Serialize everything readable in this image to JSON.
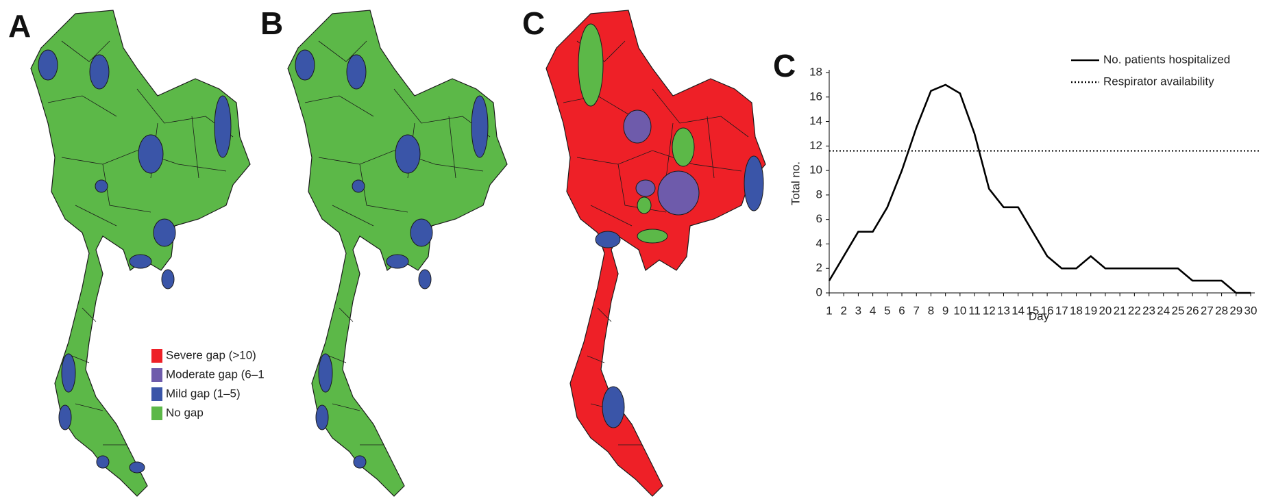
{
  "panels": [
    {
      "label": "A"
    },
    {
      "label": "B"
    },
    {
      "label": "C"
    }
  ],
  "map_legend": [
    {
      "label": "Severe gap (>10)",
      "color": "#ee2027"
    },
    {
      "label": "Moderate gap (6–1",
      "color": "#6e5bab"
    },
    {
      "label": "Mild gap (1–5)",
      "color": "#3a55a8"
    },
    {
      "label": "No gap",
      "color": "#5cb848"
    }
  ],
  "chart_data": {
    "type": "line",
    "label": "C",
    "x": [
      1,
      2,
      3,
      4,
      5,
      6,
      7,
      8,
      9,
      10,
      11,
      12,
      13,
      14,
      15,
      16,
      17,
      18,
      19,
      20,
      21,
      22,
      23,
      24,
      25,
      26,
      27,
      28,
      29,
      30
    ],
    "xlim": [
      1,
      30
    ],
    "xticks": [
      1,
      2,
      3,
      4,
      5,
      6,
      7,
      8,
      9,
      10,
      11,
      12,
      13,
      14,
      15,
      16,
      17,
      18,
      19,
      20,
      21,
      22,
      23,
      24,
      25,
      26,
      27,
      28,
      29,
      30
    ],
    "ylim": [
      0,
      18
    ],
    "yticks": [
      0,
      2,
      4,
      6,
      8,
      10,
      12,
      14,
      16,
      18
    ],
    "x_label": "Day",
    "y_label": "Total no.",
    "series": [
      {
        "name": "No. patients hospitalized",
        "color": "#000000",
        "values": [
          1,
          3,
          5,
          5,
          7,
          10,
          13.5,
          16.5,
          17,
          16.3,
          13,
          8.5,
          7,
          7,
          5,
          3,
          2,
          2,
          3,
          2,
          2,
          2,
          2,
          2,
          2,
          1,
          1,
          1,
          0,
          0
        ]
      }
    ],
    "reference_lines": [
      {
        "name": "Respirator availability",
        "value": 11.6,
        "style": "dotted",
        "color": "#000000"
      }
    ]
  }
}
